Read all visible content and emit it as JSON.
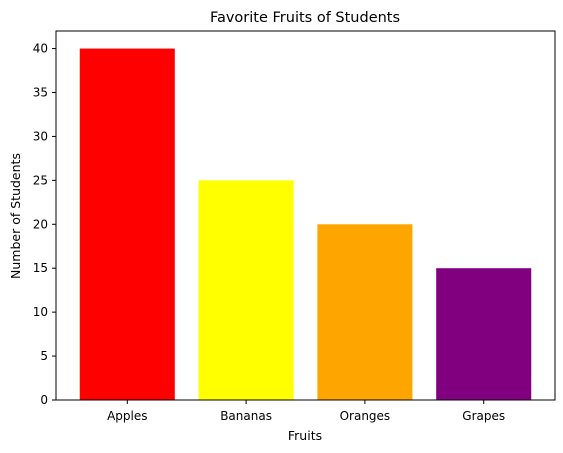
{
  "chart_data": {
    "type": "bar",
    "title": "Favorite Fruits of Students",
    "xlabel": "Fruits",
    "ylabel": "Number of Students",
    "categories": [
      "Apples",
      "Bananas",
      "Oranges",
      "Grapes"
    ],
    "values": [
      40,
      25,
      20,
      15
    ],
    "colors": [
      "#ff0000",
      "#ffff00",
      "#ffa500",
      "#800080"
    ],
    "ylim": [
      0,
      42
    ],
    "yticks": [
      0,
      5,
      10,
      15,
      20,
      25,
      30,
      35,
      40
    ],
    "grid": false,
    "legend": "none"
  }
}
